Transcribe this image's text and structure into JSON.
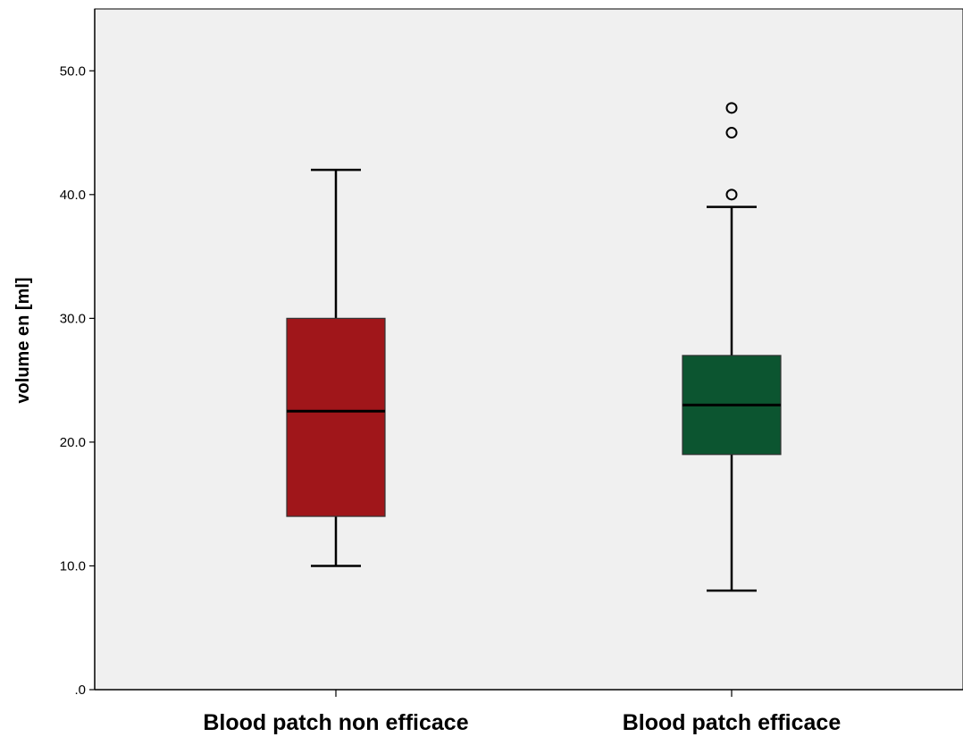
{
  "chart_data": {
    "type": "boxplot",
    "title": "",
    "xlabel": "",
    "ylabel": "volume en [ml]",
    "ylim": [
      0,
      55
    ],
    "y_ticks": [
      0,
      10,
      20,
      30,
      40,
      50
    ],
    "y_tick_labels": [
      ".0",
      "10.0",
      "20.0",
      "30.0",
      "40.0",
      "50.0"
    ],
    "grid": false,
    "legend": "none",
    "background_color": "#f0f0f0",
    "categories": [
      "Blood patch non efficace",
      "Blood patch efficace"
    ],
    "boxes": [
      {
        "category": "Blood patch non efficace",
        "whisker_low": 10,
        "q1": 14,
        "median": 22.5,
        "q3": 30,
        "whisker_high": 42,
        "outliers": [],
        "color": "#a0161a"
      },
      {
        "category": "Blood patch efficace",
        "whisker_low": 8,
        "q1": 19,
        "median": 23,
        "q3": 27,
        "whisker_high": 39,
        "outliers": [
          40,
          45,
          47
        ],
        "color": "#0c5530"
      }
    ]
  }
}
